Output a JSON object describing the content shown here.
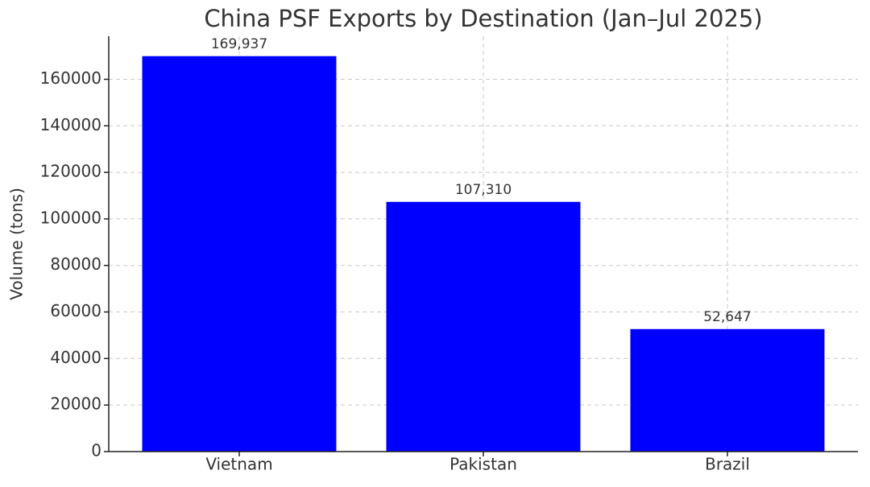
{
  "chart_data": {
    "type": "bar",
    "title": "China PSF Exports by Destination (Jan–Jul 2025)",
    "ylabel": "Volume (tons)",
    "categories": [
      "Vietnam",
      "Pakistan",
      "Brazil"
    ],
    "values": [
      169937,
      107310,
      52647
    ],
    "value_labels": [
      "169,937",
      "107,310",
      "52,647"
    ],
    "color": "#0000ff",
    "ylim": [
      0,
      178500
    ],
    "yticks": [
      0,
      20000,
      40000,
      60000,
      80000,
      100000,
      120000,
      140000,
      160000
    ],
    "grid": true
  }
}
